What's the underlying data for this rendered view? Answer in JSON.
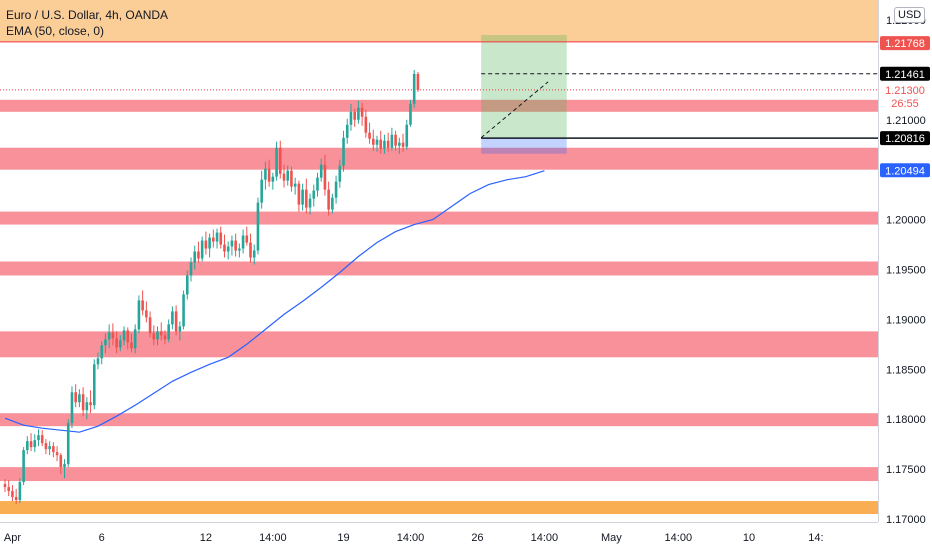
{
  "header": {
    "title": "Euro / U.S. Dollar, 4h, OANDA",
    "indicator": "EMA (50, close, 0)"
  },
  "unit_badge": "USD",
  "chart_data": {
    "type": "candlestick",
    "symbol": "EUR/USD",
    "interval": "4h",
    "source": "OANDA",
    "price_range": [
      1.1697,
      1.222
    ],
    "y_ticks": [
      {
        "value": 1.17,
        "label": "1.17000"
      },
      {
        "value": 1.175,
        "label": "1.17500"
      },
      {
        "value": 1.18,
        "label": "1.18000"
      },
      {
        "value": 1.185,
        "label": "1.18500"
      },
      {
        "value": 1.19,
        "label": "1.19000"
      },
      {
        "value": 1.195,
        "label": "1.19500"
      },
      {
        "value": 1.2,
        "label": "1.20000"
      },
      {
        "value": 1.21,
        "label": "1.21000"
      },
      {
        "value": 1.22,
        "label": "1.22000"
      }
    ],
    "x_ticks": [
      {
        "bar": 2,
        "label": "Apr"
      },
      {
        "bar": 26,
        "label": "6"
      },
      {
        "bar": 54,
        "label": "12"
      },
      {
        "bar": 72,
        "label": "14:00"
      },
      {
        "bar": 91,
        "label": "19"
      },
      {
        "bar": 109,
        "label": "14:00"
      },
      {
        "bar": 127,
        "label": "26"
      },
      {
        "bar": 145,
        "label": "14:00"
      },
      {
        "bar": 163,
        "label": "May"
      },
      {
        "bar": 181,
        "label": "14:00"
      },
      {
        "bar": 200,
        "label": "10"
      },
      {
        "bar": 218,
        "label": "14:"
      }
    ],
    "axis_labels": [
      {
        "key": "ask",
        "value": 1.21461,
        "label": "1.21461",
        "color": "#000000",
        "text_color": "#ffffff"
      },
      {
        "key": "level",
        "value": 1.21768,
        "label": "1.21768",
        "color": "#ef5350",
        "text_color": "#ffffff"
      },
      {
        "key": "price",
        "value": 1.213,
        "label": "1.21300",
        "color": "#ffffff",
        "text_color": "#ef5350"
      },
      {
        "key": "countdown",
        "value": 1.2117,
        "label": "26:55",
        "color": "#ffffff",
        "text_color": "#ef5350"
      },
      {
        "key": "entry",
        "value": 1.20816,
        "label": "1.20816",
        "color": "#000000",
        "text_color": "#ffffff"
      },
      {
        "key": "ema",
        "value": 1.20494,
        "label": "1.20494",
        "color": "#2962ff",
        "text_color": "#ffffff"
      }
    ],
    "zones": [
      {
        "from": 1.2178,
        "to": 1.222,
        "color": "#f7931a",
        "opacity": 0.45
      },
      {
        "from": 1.2108,
        "to": 1.212,
        "color": "#f23645",
        "opacity": 0.55
      },
      {
        "from": 1.205,
        "to": 1.2072,
        "color": "#f23645",
        "opacity": 0.55
      },
      {
        "from": 1.1995,
        "to": 1.2008,
        "color": "#f23645",
        "opacity": 0.55
      },
      {
        "from": 1.1944,
        "to": 1.1958,
        "color": "#f23645",
        "opacity": 0.55
      },
      {
        "from": 1.1862,
        "to": 1.1888,
        "color": "#f23645",
        "opacity": 0.55
      },
      {
        "from": 1.1793,
        "to": 1.1806,
        "color": "#f23645",
        "opacity": 0.55
      },
      {
        "from": 1.1738,
        "to": 1.1752,
        "color": "#f23645",
        "opacity": 0.55
      },
      {
        "from": 1.1705,
        "to": 1.1718,
        "color": "#f7931a",
        "opacity": 0.75
      }
    ],
    "position": {
      "type": "long",
      "from_bar": 128,
      "to_bar": 151,
      "entry": 1.20816,
      "stop": 1.2066,
      "target": 1.2185,
      "profit_color": "#4caf50",
      "loss_color": "#2962ff"
    },
    "horizontal_lines": [
      {
        "value": 1.2178,
        "style": "solid",
        "color": "#f23645"
      },
      {
        "value": 1.21461,
        "style": "dashed",
        "color": "#131722",
        "from_bar": 128
      },
      {
        "value": 1.213,
        "style": "dotted",
        "color": "#f23645"
      }
    ],
    "trend_line": {
      "from": [
        128,
        1.2082
      ],
      "to": [
        146,
        1.2138
      ],
      "color": "#131722",
      "style": "dashed"
    },
    "ema": {
      "period": 50,
      "color": "#2962ff",
      "points": [
        [
          0,
          1.1801
        ],
        [
          5,
          1.1794
        ],
        [
          10,
          1.1791
        ],
        [
          15,
          1.1789
        ],
        [
          20,
          1.1787
        ],
        [
          25,
          1.1793
        ],
        [
          30,
          1.1803
        ],
        [
          35,
          1.1814
        ],
        [
          40,
          1.1826
        ],
        [
          45,
          1.1838
        ],
        [
          50,
          1.1847
        ],
        [
          55,
          1.1855
        ],
        [
          60,
          1.1862
        ],
        [
          65,
          1.1875
        ],
        [
          70,
          1.189
        ],
        [
          75,
          1.1905
        ],
        [
          80,
          1.1918
        ],
        [
          85,
          1.1932
        ],
        [
          90,
          1.1947
        ],
        [
          95,
          1.1963
        ],
        [
          100,
          1.1977
        ],
        [
          105,
          1.1988
        ],
        [
          110,
          1.1995
        ],
        [
          115,
          1.2
        ],
        [
          120,
          1.2013
        ],
        [
          125,
          1.2026
        ],
        [
          130,
          1.2035
        ],
        [
          135,
          1.204
        ],
        [
          140,
          1.2043
        ],
        [
          145,
          1.2049
        ]
      ]
    },
    "candles": [
      [
        1.1735,
        1.174,
        1.1727,
        1.1732
      ],
      [
        1.1732,
        1.1739,
        1.1723,
        1.1728
      ],
      [
        1.1728,
        1.1734,
        1.1718,
        1.1722
      ],
      [
        1.1722,
        1.173,
        1.1715,
        1.1719
      ],
      [
        1.1719,
        1.1741,
        1.1716,
        1.1737
      ],
      [
        1.1737,
        1.1772,
        1.1734,
        1.1769
      ],
      [
        1.1769,
        1.1783,
        1.1765,
        1.1778
      ],
      [
        1.1778,
        1.1786,
        1.1768,
        1.1772
      ],
      [
        1.1772,
        1.1785,
        1.1767,
        1.1779
      ],
      [
        1.1779,
        1.179,
        1.1773,
        1.1784
      ],
      [
        1.1784,
        1.1789,
        1.1773,
        1.1776
      ],
      [
        1.1776,
        1.178,
        1.1765,
        1.177
      ],
      [
        1.177,
        1.1778,
        1.1764,
        1.1773
      ],
      [
        1.1773,
        1.1777,
        1.1762,
        1.1767
      ],
      [
        1.1767,
        1.1773,
        1.1758,
        1.1764
      ],
      [
        1.1764,
        1.1766,
        1.1745,
        1.1752
      ],
      [
        1.1752,
        1.176,
        1.1741,
        1.1755
      ],
      [
        1.1755,
        1.18,
        1.1752,
        1.1796
      ],
      [
        1.1796,
        1.1833,
        1.1791,
        1.1827
      ],
      [
        1.1827,
        1.1835,
        1.1812,
        1.1817
      ],
      [
        1.1817,
        1.183,
        1.1812,
        1.1825
      ],
      [
        1.1825,
        1.1832,
        1.1803,
        1.1809
      ],
      [
        1.1809,
        1.1822,
        1.18,
        1.1817
      ],
      [
        1.1817,
        1.1829,
        1.1806,
        1.1814
      ],
      [
        1.1814,
        1.186,
        1.181,
        1.1855
      ],
      [
        1.1855,
        1.1867,
        1.185,
        1.1861
      ],
      [
        1.1861,
        1.1878,
        1.1855,
        1.1874
      ],
      [
        1.1874,
        1.1886,
        1.1866,
        1.188
      ],
      [
        1.188,
        1.1895,
        1.1871,
        1.1887
      ],
      [
        1.1887,
        1.1896,
        1.1874,
        1.1881
      ],
      [
        1.1881,
        1.1888,
        1.1866,
        1.1872
      ],
      [
        1.1872,
        1.1884,
        1.1868,
        1.1879
      ],
      [
        1.1879,
        1.1893,
        1.1874,
        1.1889
      ],
      [
        1.1889,
        1.1892,
        1.187,
        1.1877
      ],
      [
        1.1877,
        1.1886,
        1.1867,
        1.1871
      ],
      [
        1.1871,
        1.1895,
        1.1866,
        1.189
      ],
      [
        1.189,
        1.1924,
        1.1886,
        1.1919
      ],
      [
        1.1919,
        1.1929,
        1.1904,
        1.1909
      ],
      [
        1.1909,
        1.1918,
        1.1897,
        1.1902
      ],
      [
        1.1902,
        1.1908,
        1.1882,
        1.1886
      ],
      [
        1.1886,
        1.1894,
        1.1874,
        1.188
      ],
      [
        1.188,
        1.1893,
        1.1874,
        1.1888
      ],
      [
        1.1888,
        1.1897,
        1.1879,
        1.1884
      ],
      [
        1.1884,
        1.1889,
        1.1875,
        1.188
      ],
      [
        1.188,
        1.19,
        1.1877,
        1.1895
      ],
      [
        1.1895,
        1.1913,
        1.189,
        1.1908
      ],
      [
        1.1908,
        1.1914,
        1.1884,
        1.1888
      ],
      [
        1.1888,
        1.1898,
        1.1879,
        1.1893
      ],
      [
        1.1893,
        1.1929,
        1.189,
        1.1925
      ],
      [
        1.1925,
        1.1949,
        1.192,
        1.1944
      ],
      [
        1.1944,
        1.1962,
        1.1938,
        1.1957
      ],
      [
        1.1957,
        1.1974,
        1.195,
        1.1968
      ],
      [
        1.1968,
        1.1978,
        1.1957,
        1.1961
      ],
      [
        1.1961,
        1.1983,
        1.1958,
        1.1979
      ],
      [
        1.1979,
        1.1988,
        1.1965,
        1.1971
      ],
      [
        1.1971,
        1.1986,
        1.1962,
        1.1982
      ],
      [
        1.1982,
        1.199,
        1.1972,
        1.1978
      ],
      [
        1.1978,
        1.1991,
        1.1971,
        1.1987
      ],
      [
        1.1987,
        1.1993,
        1.1971,
        1.1975
      ],
      [
        1.1975,
        1.1985,
        1.1962,
        1.1968
      ],
      [
        1.1968,
        1.1978,
        1.196,
        1.1973
      ],
      [
        1.1973,
        1.1984,
        1.1964,
        1.1979
      ],
      [
        1.1979,
        1.1986,
        1.1963,
        1.1969
      ],
      [
        1.1969,
        1.1976,
        1.1962,
        1.1971
      ],
      [
        1.1971,
        1.199,
        1.1966,
        1.1984
      ],
      [
        1.1984,
        1.1993,
        1.1974,
        1.1977
      ],
      [
        1.1977,
        1.1986,
        1.1957,
        1.1962
      ],
      [
        1.1962,
        1.1975,
        1.1955,
        1.1969
      ],
      [
        1.1969,
        1.2022,
        1.1965,
        1.2017
      ],
      [
        1.2017,
        1.2049,
        1.2011,
        1.204
      ],
      [
        1.204,
        1.2058,
        1.203,
        1.2051
      ],
      [
        1.2051,
        1.206,
        1.2033,
        1.2038
      ],
      [
        1.2038,
        1.2047,
        1.203,
        1.2043
      ],
      [
        1.2043,
        1.2078,
        1.2039,
        1.2072
      ],
      [
        1.2072,
        1.2079,
        1.2041,
        1.2046
      ],
      [
        1.2046,
        1.2055,
        1.2032,
        1.2039
      ],
      [
        1.2039,
        1.2054,
        1.2034,
        1.2049
      ],
      [
        1.2049,
        1.2053,
        1.2028,
        1.2033
      ],
      [
        1.2033,
        1.2042,
        1.2025,
        1.2036
      ],
      [
        1.2036,
        1.2039,
        1.2008,
        1.2015
      ],
      [
        1.2015,
        1.2036,
        1.2009,
        1.203
      ],
      [
        1.203,
        1.2041,
        1.2006,
        1.2012
      ],
      [
        1.2012,
        1.2026,
        1.2005,
        1.2021
      ],
      [
        1.2021,
        1.2035,
        1.2013,
        1.2029
      ],
      [
        1.2029,
        1.2047,
        1.2023,
        1.2042
      ],
      [
        1.2042,
        1.2061,
        1.2038,
        1.2055
      ],
      [
        1.2055,
        1.2065,
        1.2024,
        1.203
      ],
      [
        1.203,
        1.2038,
        1.2004,
        1.201
      ],
      [
        1.201,
        1.2026,
        1.2006,
        1.2022
      ],
      [
        1.2022,
        1.2044,
        1.2016,
        1.2038
      ],
      [
        1.2038,
        1.206,
        1.2032,
        1.2054
      ],
      [
        1.2054,
        1.2089,
        1.2048,
        1.2082
      ],
      [
        1.2082,
        1.2101,
        1.2076,
        1.2095
      ],
      [
        1.2095,
        1.2116,
        1.2089,
        1.2108
      ],
      [
        1.2108,
        1.2111,
        1.2093,
        1.21
      ],
      [
        1.21,
        1.2119,
        1.2096,
        1.2112
      ],
      [
        1.2112,
        1.2117,
        1.2094,
        1.2103
      ],
      [
        1.2103,
        1.211,
        1.2082,
        1.2087
      ],
      [
        1.2087,
        1.2097,
        1.2076,
        1.2081
      ],
      [
        1.2081,
        1.209,
        1.2069,
        1.2075
      ],
      [
        1.2075,
        1.2084,
        1.2068,
        1.208
      ],
      [
        1.208,
        1.2089,
        1.2066,
        1.2071
      ],
      [
        1.2071,
        1.2085,
        1.2066,
        1.2079
      ],
      [
        1.2079,
        1.2087,
        1.2068,
        1.2072
      ],
      [
        1.2072,
        1.2092,
        1.2069,
        1.2085
      ],
      [
        1.2085,
        1.2089,
        1.2069,
        1.2074
      ],
      [
        1.2074,
        1.2082,
        1.2066,
        1.2077
      ],
      [
        1.2077,
        1.2086,
        1.2068,
        1.2073
      ],
      [
        1.2073,
        1.21,
        1.207,
        1.2095
      ],
      [
        1.2095,
        1.212,
        1.2093,
        1.2116
      ],
      [
        1.2116,
        1.215,
        1.2112,
        1.2146
      ],
      [
        1.2146,
        1.2148,
        1.2128,
        1.213
      ]
    ]
  }
}
